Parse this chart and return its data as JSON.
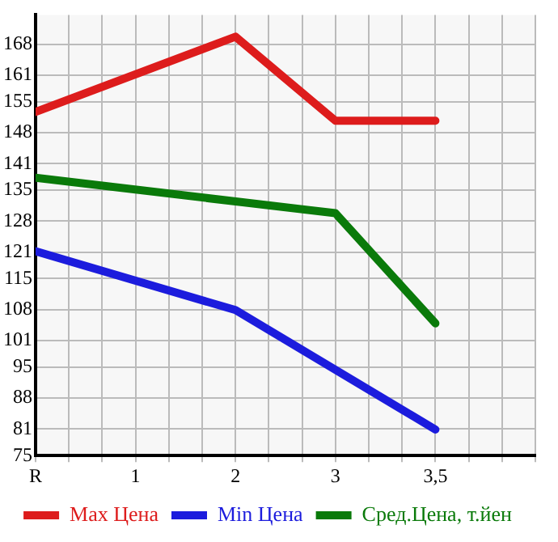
{
  "chart_data": {
    "type": "line",
    "categories": [
      "R",
      "1",
      "2",
      "3",
      "3,5"
    ],
    "series": [
      {
        "name": "Max Цена",
        "color": "#dd1c1c",
        "values": [
          152.7,
          null,
          169.7,
          150.7,
          150.7
        ]
      },
      {
        "name": "Min Цена",
        "color": "#1c1cdd",
        "values": [
          121.2,
          null,
          107.9,
          null,
          80.9
        ]
      },
      {
        "name": "Сред.Цена, т.йен",
        "color": "#0a7a0a",
        "values": [
          137.8,
          null,
          null,
          129.8,
          104.9
        ]
      }
    ],
    "ylim": [
      75,
      174.64
    ],
    "yticks": [
      75,
      81,
      88,
      95,
      101,
      108,
      115,
      121,
      128,
      135,
      141,
      148,
      155,
      161,
      168
    ],
    "grid": true,
    "legend": "bottom",
    "marker": "none",
    "line_style": "solid"
  }
}
